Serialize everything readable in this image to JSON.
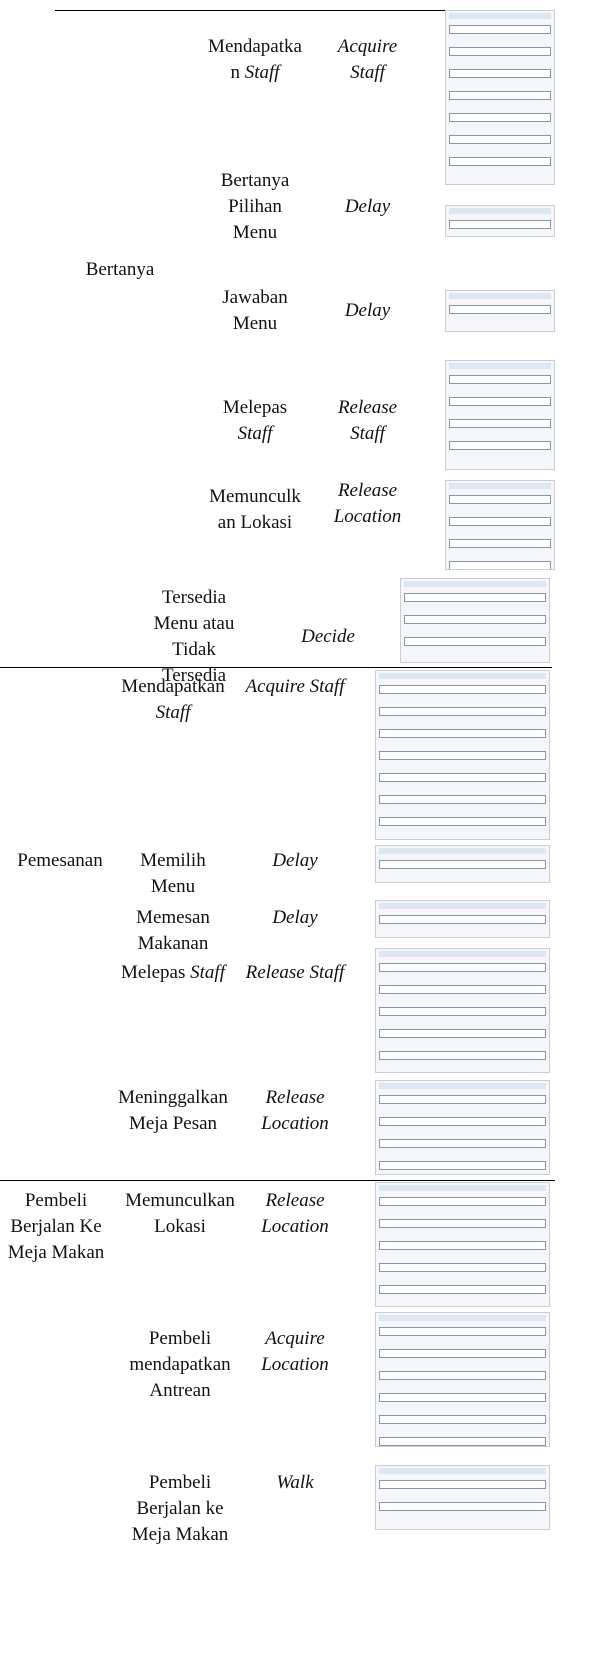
{
  "sections": [
    {
      "group": "Bertanya",
      "rows": [
        {
          "activity": "Mendapatkan",
          "activity_em": "Staff",
          "module": "Acquire Staff"
        },
        {
          "activity": "Bertanya Pilihan Menu",
          "module": "Delay"
        },
        {
          "activity": "Jawaban Menu",
          "module": "Delay"
        },
        {
          "activity": "Melepas",
          "activity_em": "Staff",
          "module": "Release Staff"
        },
        {
          "activity": "Memunculkan Lokasi",
          "module": "Release Location"
        },
        {
          "activity": "Tersedia Menu atau Tidak Tersedia",
          "module": "Decide"
        }
      ]
    },
    {
      "group": "Pemesanan",
      "rows": [
        {
          "activity": "Mendapatkan",
          "activity_em": "Staff",
          "module": "Acquire Staff"
        },
        {
          "activity": "Memilih Menu",
          "module": "Delay"
        },
        {
          "activity": "Memesan Makanan",
          "module": "Delay"
        },
        {
          "activity": "Melepas",
          "activity_em": "Staff",
          "module": "Release Staff"
        },
        {
          "activity": "Meninggalkan Meja Pesan",
          "module": "Release Location"
        }
      ]
    },
    {
      "group": "Pembeli Berjalan Ke Meja Makan",
      "rows": [
        {
          "activity": "Memunculkan Lokasi",
          "module": "Release Location"
        },
        {
          "activity": "Pembeli mendapatkan Antrean",
          "module": "Acquire Location"
        },
        {
          "activity": "Pembeli Berjalan ke Meja Makan",
          "module": "Walk"
        }
      ]
    }
  ]
}
